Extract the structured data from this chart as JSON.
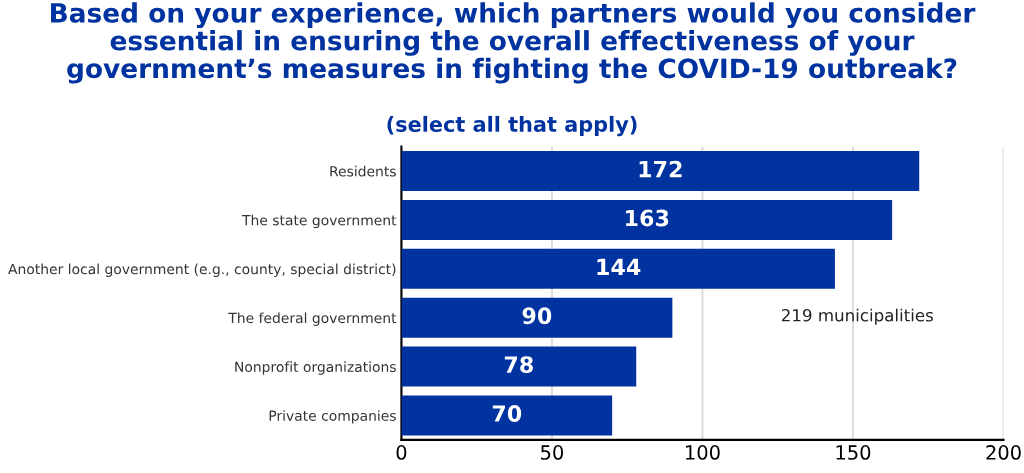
{
  "chart_data": {
    "type": "bar",
    "orientation": "horizontal",
    "title": "Based on your experience, which partners would you consider\nessential in ensuring the overall effectiveness of your\ngovernment’s measures in fighting the COVID-19 outbreak?",
    "subtitle": "(select all that apply)",
    "categories": [
      "Residents",
      "The state government",
      "Another local government (e.g., county, special district)",
      "The federal government",
      "Nonprofit organizations",
      "Private companies"
    ],
    "values": [
      172,
      163,
      144,
      90,
      78,
      70
    ],
    "color": "#0033a0",
    "xlim": [
      0,
      200
    ],
    "xticks": [
      0,
      50,
      100,
      150,
      200
    ],
    "grid": "x",
    "data_labels": true,
    "legend": false,
    "annotations": [
      "219 municipalities"
    ]
  }
}
